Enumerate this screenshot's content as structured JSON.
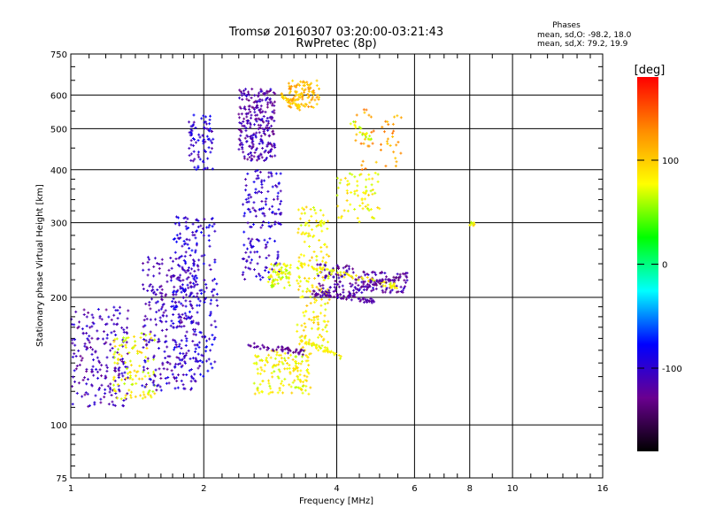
{
  "chart_data": {
    "type": "scatter",
    "title": "Tromsø 20160307 03:20:00-03:21:43",
    "subtitle": "RwPretec (8p)",
    "xlabel": "Frequency [MHz]",
    "ylabel": "Stationary phase Virtual Height [km]",
    "x_scale": "log",
    "y_scale": "log",
    "xlim": [
      1,
      16
    ],
    "ylim": [
      75,
      750
    ],
    "x_ticks": [
      1,
      2,
      4,
      6,
      8,
      10,
      16
    ],
    "y_ticks": [
      75,
      100,
      200,
      300,
      400,
      500,
      600,
      750
    ],
    "grid": true,
    "stats": {
      "heading": "Phases",
      "line_o": "mean, sd,O: -98.2, 18.0",
      "line_x": "mean, sd,X:  79.2, 19.9"
    },
    "colorbar": {
      "label": "[deg]",
      "range": [
        -180,
        180
      ],
      "ticks": [
        100,
        0,
        -100
      ],
      "colors": [
        "#000000",
        "#6a0090",
        "#0000ff",
        "#00ffff",
        "#00ff00",
        "#ffff00",
        "#ff8c00",
        "#ff0000"
      ]
    },
    "clusters": [
      {
        "f": [
          1.0,
          1.35
        ],
        "h": [
          110,
          190
        ],
        "phase": -110,
        "count": 200
      },
      {
        "f": [
          1.25,
          1.55
        ],
        "h": [
          115,
          165
        ],
        "phase": 80,
        "count": 110
      },
      {
        "f": [
          1.45,
          1.95
        ],
        "h": [
          120,
          250
        ],
        "phase": -105,
        "count": 280
      },
      {
        "f": [
          1.7,
          2.15
        ],
        "h": [
          130,
          310
        ],
        "phase": -95,
        "count": 230
      },
      {
        "f": [
          1.85,
          2.1
        ],
        "h": [
          400,
          540
        ],
        "phase": -100,
        "count": 80
      },
      {
        "f": [
          2.4,
          2.9
        ],
        "h": [
          420,
          620
        ],
        "phase": -115,
        "count": 260
      },
      {
        "f": [
          2.45,
          3.0
        ],
        "h": [
          220,
          400
        ],
        "phase": -100,
        "count": 160
      },
      {
        "f": [
          2.6,
          3.5
        ],
        "h": [
          118,
          150
        ],
        "phase": 80,
        "count": 150
      },
      {
        "f": [
          2.8,
          3.15
        ],
        "h": [
          210,
          240
        ],
        "phase": 75,
        "count": 70
      },
      {
        "f": [
          3.1,
          3.65
        ],
        "h": [
          560,
          650
        ],
        "phase": 110,
        "count": 100
      },
      {
        "f": [
          3.25,
          3.85
        ],
        "h": [
          150,
          330
        ],
        "phase": 85,
        "count": 180
      },
      {
        "f": [
          3.6,
          4.4
        ],
        "h": [
          200,
          240
        ],
        "phase": -120,
        "count": 90
      },
      {
        "f": [
          4.0,
          5.0
        ],
        "h": [
          300,
          400
        ],
        "phase": 80,
        "count": 70
      },
      {
        "f": [
          4.4,
          5.8
        ],
        "h": [
          205,
          230
        ],
        "phase": -115,
        "count": 90
      },
      {
        "f": [
          4.4,
          5.6
        ],
        "h": [
          400,
          560
        ],
        "phase": 120,
        "count": 50
      },
      {
        "f": [
          8.0,
          8.3
        ],
        "h": [
          295,
          302
        ],
        "phase": 80,
        "count": 8
      }
    ],
    "traces": [
      {
        "f": [
          2.5,
          3.4
        ],
        "h": [
          155,
          148
        ],
        "phase": -125,
        "count": 50
      },
      {
        "f": [
          3.3,
          4.1
        ],
        "h": [
          160,
          145
        ],
        "phase": 80,
        "count": 45
      },
      {
        "f": [
          3.5,
          4.9
        ],
        "h": [
          205,
          196
        ],
        "phase": -120,
        "count": 60
      },
      {
        "f": [
          3.3,
          5.5
        ],
        "h": [
          238,
          212
        ],
        "phase": 80,
        "count": 70
      },
      {
        "f": [
          4.6,
          5.8
        ],
        "h": [
          212,
          226
        ],
        "phase": -125,
        "count": 40
      },
      {
        "f": [
          3.0,
          3.3
        ],
        "h": [
          600,
          560
        ],
        "phase": 100,
        "count": 30
      },
      {
        "f": [
          4.3,
          4.8
        ],
        "h": [
          520,
          470
        ],
        "phase": 70,
        "count": 20
      }
    ]
  }
}
